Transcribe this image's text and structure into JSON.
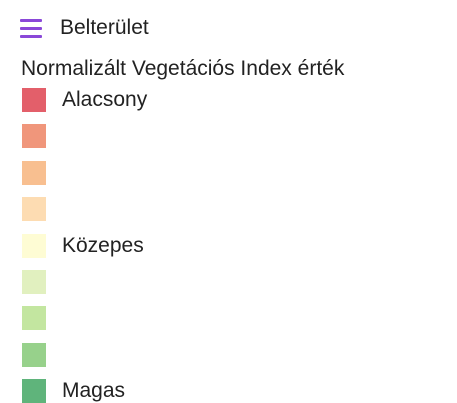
{
  "layer": {
    "label": "Belterület",
    "color": "#8a48d8"
  },
  "legend": {
    "title": "Normalizált Vegetációs Index érték",
    "swatches": [
      {
        "color": "#e35f6a",
        "label": "Alacsony"
      },
      {
        "color": "#f0967b"
      },
      {
        "color": "#f8bf90"
      },
      {
        "color": "#fddcb2"
      },
      {
        "color": "#fefcd4",
        "label": "Közepes"
      },
      {
        "color": "#e1f0bf"
      },
      {
        "color": "#c3e6a0"
      },
      {
        "color": "#97d18b"
      },
      {
        "color": "#5fb47b",
        "label": "Magas"
      }
    ]
  }
}
